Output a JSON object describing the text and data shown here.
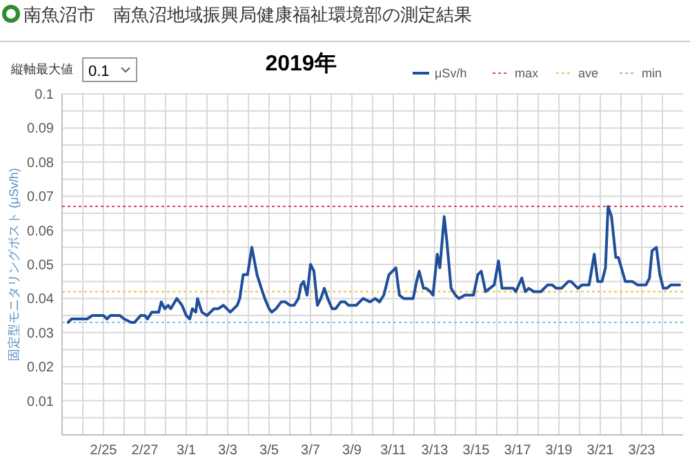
{
  "chart_data": {
    "type": "line",
    "title": "南魚沼市　南魚沼地域振興局健康福祉環境部の測定結果",
    "subtitle": "2019年",
    "ylabel": "固定型モニタリングポスト (μSv/h)",
    "annotations": [
      "縦軸最大値",
      "0.1"
    ],
    "xlim": [
      "2019-02-23T00:00",
      "2019-03-25T00:00"
    ],
    "xticks": [
      {
        "value": "2019-02-24",
        "label": null
      },
      {
        "value": "2019-02-25",
        "label": "2/25"
      },
      {
        "value": "2019-02-26",
        "label": null
      },
      {
        "value": "2019-02-27",
        "label": "2/27"
      },
      {
        "value": "2019-02-28",
        "label": null
      },
      {
        "value": "2019-03-01",
        "label": "3/1"
      },
      {
        "value": "2019-03-02",
        "label": null
      },
      {
        "value": "2019-03-03",
        "label": "3/3"
      },
      {
        "value": "2019-03-04",
        "label": null
      },
      {
        "value": "2019-03-05",
        "label": "3/5"
      },
      {
        "value": "2019-03-06",
        "label": null
      },
      {
        "value": "2019-03-07",
        "label": "3/7"
      },
      {
        "value": "2019-03-08",
        "label": null
      },
      {
        "value": "2019-03-09",
        "label": "3/9"
      },
      {
        "value": "2019-03-10",
        "label": null
      },
      {
        "value": "2019-03-11",
        "label": "3/11"
      },
      {
        "value": "2019-03-12",
        "label": null
      },
      {
        "value": "2019-03-13",
        "label": "3/13"
      },
      {
        "value": "2019-03-14",
        "label": null
      },
      {
        "value": "2019-03-15",
        "label": "3/15"
      },
      {
        "value": "2019-03-16",
        "label": null
      },
      {
        "value": "2019-03-17",
        "label": "3/17"
      },
      {
        "value": "2019-03-18",
        "label": null
      },
      {
        "value": "2019-03-19",
        "label": "3/19"
      },
      {
        "value": "2019-03-20",
        "label": null
      },
      {
        "value": "2019-03-21",
        "label": "3/21"
      },
      {
        "value": "2019-03-22",
        "label": null
      },
      {
        "value": "2019-03-23",
        "label": "3/23"
      },
      {
        "value": "2019-03-24",
        "label": null
      }
    ],
    "ylim": [
      0,
      0.1
    ],
    "yticks": [
      {
        "value": 0.005,
        "label": null
      },
      0.01,
      {
        "value": 0.015,
        "label": null
      },
      0.02,
      {
        "value": 0.025,
        "label": null
      },
      0.03,
      {
        "value": 0.035,
        "label": null
      },
      0.04,
      {
        "value": 0.045,
        "label": null
      },
      0.05,
      {
        "value": 0.055,
        "label": null
      },
      0.06,
      {
        "value": 0.065,
        "label": null
      },
      0.07,
      {
        "value": 0.075,
        "label": null
      },
      0.08,
      {
        "value": 0.085,
        "label": null
      },
      0.09,
      {
        "value": 0.095,
        "label": null
      },
      0.1
    ],
    "grid": true,
    "legend": "top right",
    "marker": "none",
    "line_style": "solid",
    "ref_lines": [
      {
        "axis": "y",
        "value": 0.067,
        "label": "max",
        "color": "#e0405a",
        "line_style": "dotted"
      },
      {
        "axis": "y",
        "value": 0.042,
        "label": "ave",
        "color": "#f0c040",
        "line_style": "dotted"
      },
      {
        "axis": "y",
        "value": 0.033,
        "label": "min",
        "color": "#80c0e0",
        "line_style": "dotted"
      }
    ],
    "series": [
      {
        "name": "μSv/h",
        "color": "#1f4e9a",
        "x": [
          "2019-02-23T07:00",
          "2019-02-23T11:00",
          "2019-02-24T05:00",
          "2019-02-24T11:00",
          "2019-02-25T00:00",
          "2019-02-25T04:00",
          "2019-02-25T08:00",
          "2019-02-25T19:00",
          "2019-02-26T00:00",
          "2019-02-26T08:00",
          "2019-02-26T12:00",
          "2019-02-26T19:00",
          "2019-02-27T00:00",
          "2019-02-27T03:00",
          "2019-02-27T08:00",
          "2019-02-27T16:00",
          "2019-02-27T19:00",
          "2019-02-27T23:00",
          "2019-02-28T03:00",
          "2019-02-28T06:00",
          "2019-02-28T13:00",
          "2019-02-28T19:00",
          "2019-03-01T00:00",
          "2019-03-01T04:00",
          "2019-03-01T07:00",
          "2019-03-01T11:00",
          "2019-03-01T13:00",
          "2019-03-01T18:00",
          "2019-03-02T00:00",
          "2019-03-02T08:00",
          "2019-03-02T13:00",
          "2019-03-02T19:00",
          "2019-03-03T03:00",
          "2019-03-03T11:00",
          "2019-03-03T14:00",
          "2019-03-03T18:00",
          "2019-03-03T23:00",
          "2019-03-04T04:00",
          "2019-03-04T10:00",
          "2019-03-04T15:00",
          "2019-03-04T19:00",
          "2019-03-05T00:00",
          "2019-03-05T03:00",
          "2019-03-05T08:00",
          "2019-03-05T14:00",
          "2019-03-05T19:00",
          "2019-03-06T00:00",
          "2019-03-06T05:00",
          "2019-03-06T10:00",
          "2019-03-06T13:00",
          "2019-03-06T16:00",
          "2019-03-06T20:00",
          "2019-03-07T00:00",
          "2019-03-07T04:00",
          "2019-03-07T08:00",
          "2019-03-07T12:00",
          "2019-03-07T16:00",
          "2019-03-07T20:00",
          "2019-03-08T01:00",
          "2019-03-08T05:00",
          "2019-03-08T11:00",
          "2019-03-08T16:00",
          "2019-03-08T20:00",
          "2019-03-09T05:00",
          "2019-03-09T13:00",
          "2019-03-09T21:00",
          "2019-03-10T03:00",
          "2019-03-10T08:00",
          "2019-03-10T13:00",
          "2019-03-10T19:00",
          "2019-03-11T03:00",
          "2019-03-11T07:00",
          "2019-03-11T12:00",
          "2019-03-11T23:00",
          "2019-03-12T03:00",
          "2019-03-12T06:00",
          "2019-03-12T11:00",
          "2019-03-12T14:00",
          "2019-03-12T19:00",
          "2019-03-12T22:00",
          "2019-03-13T03:00",
          "2019-03-13T06:00",
          "2019-03-13T11:00",
          "2019-03-13T14:00",
          "2019-03-13T19:00",
          "2019-03-14T00:00",
          "2019-03-14T04:00",
          "2019-03-14T11:00",
          "2019-03-14T21:00",
          "2019-03-15T02:00",
          "2019-03-15T06:00",
          "2019-03-15T11:00",
          "2019-03-15T16:00",
          "2019-03-15T21:00",
          "2019-03-16T02:00",
          "2019-03-16T06:00",
          "2019-03-16T13:00",
          "2019-03-16T19:00",
          "2019-03-16T22:00",
          "2019-03-17T05:00",
          "2019-03-17T09:00",
          "2019-03-17T13:00",
          "2019-03-17T19:00",
          "2019-03-18T03:00",
          "2019-03-18T11:00",
          "2019-03-18T16:00",
          "2019-03-18T21:00",
          "2019-03-19T03:00",
          "2019-03-19T11:00",
          "2019-03-19T14:00",
          "2019-03-19T22:00",
          "2019-03-20T03:00",
          "2019-03-20T11:00",
          "2019-03-20T17:00",
          "2019-03-20T21:00",
          "2019-03-21T02:00",
          "2019-03-21T06:00",
          "2019-03-21T09:00",
          "2019-03-21T13:00",
          "2019-03-21T18:00",
          "2019-03-21T21:00",
          "2019-03-22T05:00",
          "2019-03-22T13:00",
          "2019-03-22T19:00",
          "2019-03-23T05:00",
          "2019-03-23T09:00",
          "2019-03-23T12:00",
          "2019-03-23T17:00",
          "2019-03-23T21:00",
          "2019-03-24T01:00",
          "2019-03-24T05:00",
          "2019-03-24T10:00",
          "2019-03-24T20:00"
        ],
        "values": [
          0.033,
          0.034,
          0.034,
          0.035,
          0.035,
          0.034,
          0.035,
          0.035,
          0.034,
          0.033,
          0.033,
          0.035,
          0.035,
          0.034,
          0.036,
          0.036,
          0.039,
          0.037,
          0.038,
          0.037,
          0.04,
          0.038,
          0.035,
          0.034,
          0.037,
          0.036,
          0.04,
          0.036,
          0.035,
          0.037,
          0.037,
          0.038,
          0.036,
          0.038,
          0.04,
          0.047,
          0.047,
          0.055,
          0.047,
          0.043,
          0.04,
          0.037,
          0.036,
          0.037,
          0.039,
          0.039,
          0.038,
          0.038,
          0.04,
          0.044,
          0.045,
          0.041,
          0.05,
          0.048,
          0.038,
          0.04,
          0.043,
          0.04,
          0.037,
          0.037,
          0.039,
          0.039,
          0.038,
          0.038,
          0.04,
          0.039,
          0.04,
          0.039,
          0.041,
          0.047,
          0.049,
          0.041,
          0.04,
          0.04,
          0.045,
          0.048,
          0.043,
          0.043,
          0.042,
          0.041,
          0.053,
          0.049,
          0.064,
          0.057,
          0.043,
          0.041,
          0.04,
          0.041,
          0.041,
          0.047,
          0.048,
          0.042,
          0.043,
          0.044,
          0.051,
          0.043,
          0.043,
          0.043,
          0.042,
          0.046,
          0.042,
          0.043,
          0.042,
          0.042,
          0.044,
          0.044,
          0.043,
          0.043,
          0.045,
          0.045,
          0.043,
          0.044,
          0.044,
          0.053,
          0.045,
          0.045,
          0.049,
          0.067,
          0.064,
          0.052,
          0.052,
          0.045,
          0.045,
          0.044,
          0.044,
          0.046,
          0.054,
          0.055,
          0.047,
          0.043,
          0.043,
          0.044,
          0.044
        ]
      }
    ]
  }
}
